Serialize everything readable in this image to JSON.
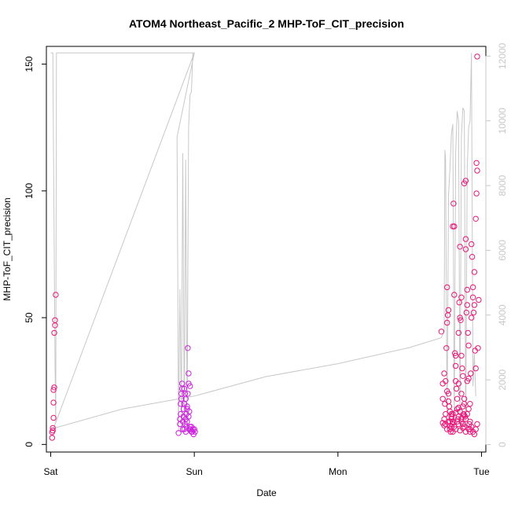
{
  "chart_data": {
    "type": "scatter",
    "title": "ATOM4 Northeast_Pacific_2 MHP-ToF_CIT_precision",
    "xlabel": "Date",
    "ylabel": "MHP-ToF_CIT_precision",
    "x_ticks": [
      {
        "label": "Sat",
        "day": 0
      },
      {
        "label": "Sun",
        "day": 1
      },
      {
        "label": "Mon",
        "day": 2
      },
      {
        "label": "Tue",
        "day": 3
      }
    ],
    "xlim": [
      -0.03,
      3.03
    ],
    "ylim": [
      -3,
      157
    ],
    "y_ticks": [
      0,
      50,
      100,
      150
    ],
    "y2_ticks": [
      0,
      2000,
      4000,
      6000,
      8000,
      10000,
      12000
    ],
    "y2lim": [
      -230,
      12300
    ],
    "grid": false,
    "legend": "none",
    "colors": {
      "points": "#e8177a",
      "points_alt": "#cc22dd",
      "line": "#c8c8c8",
      "right_axis": "#c8c8c8",
      "axis": "#000000"
    },
    "series": [
      {
        "type": "scatter",
        "axis": "left",
        "points": [
          [
            0.01,
            2.6
          ],
          [
            0.01,
            4.8
          ],
          [
            0.015,
            6.5
          ],
          [
            0.02,
            10.5
          ],
          [
            0.02,
            16.5
          ],
          [
            0.02,
            21.5
          ],
          [
            0.025,
            22.5
          ],
          [
            0.025,
            44
          ],
          [
            0.03,
            47
          ],
          [
            0.03,
            49
          ],
          [
            0.035,
            59
          ],
          [
            0.015,
            5.5
          ],
          [
            0.89,
            4.5
          ],
          [
            0.9,
            8
          ],
          [
            0.9,
            10
          ],
          [
            0.905,
            12
          ],
          [
            0.905,
            16
          ],
          [
            0.91,
            18
          ],
          [
            0.91,
            20
          ],
          [
            0.915,
            22
          ],
          [
            0.915,
            24
          ],
          [
            0.92,
            6
          ],
          [
            0.92,
            9
          ],
          [
            0.925,
            11
          ],
          [
            0.925,
            14
          ],
          [
            0.93,
            16
          ],
          [
            0.93,
            6
          ],
          [
            0.935,
            20
          ],
          [
            0.935,
            8
          ],
          [
            0.94,
            5
          ],
          [
            0.94,
            10
          ],
          [
            0.945,
            12
          ],
          [
            0.945,
            7
          ],
          [
            0.95,
            15
          ],
          [
            0.95,
            9
          ],
          [
            0.955,
            20
          ],
          [
            0.955,
            38
          ],
          [
            0.96,
            28
          ],
          [
            0.96,
            24
          ],
          [
            0.965,
            13
          ],
          [
            0.965,
            6
          ],
          [
            0.97,
            23
          ],
          [
            0.97,
            7
          ],
          [
            0.975,
            6
          ],
          [
            0.98,
            5
          ],
          [
            0.98,
            7
          ],
          [
            0.985,
            5
          ],
          [
            0.99,
            6
          ],
          [
            0.995,
            4
          ],
          [
            1.0,
            6
          ],
          [
            1.005,
            5
          ],
          [
            0.93,
            22
          ],
          [
            0.94,
            18
          ],
          [
            0.95,
            14
          ],
          [
            0.96,
            11
          ],
          [
            2.72,
            44.5
          ],
          [
            2.73,
            24
          ],
          [
            2.73,
            18
          ],
          [
            2.74,
            28
          ],
          [
            2.74,
            10
          ],
          [
            2.745,
            16
          ],
          [
            2.75,
            8
          ],
          [
            2.75,
            12
          ],
          [
            2.755,
            38
          ],
          [
            2.76,
            62
          ],
          [
            2.76,
            48
          ],
          [
            2.765,
            51
          ],
          [
            2.77,
            53
          ],
          [
            2.77,
            20
          ],
          [
            2.775,
            15
          ],
          [
            2.78,
            9
          ],
          [
            2.78,
            6
          ],
          [
            2.785,
            5
          ],
          [
            2.79,
            7
          ],
          [
            2.79,
            10
          ],
          [
            2.795,
            8
          ],
          [
            2.8,
            5
          ],
          [
            2.8,
            12
          ],
          [
            2.805,
            95
          ],
          [
            2.81,
            86
          ],
          [
            2.81,
            59
          ],
          [
            2.815,
            36
          ],
          [
            2.82,
            31
          ],
          [
            2.82,
            25
          ],
          [
            2.825,
            22
          ],
          [
            2.83,
            18
          ],
          [
            2.83,
            14
          ],
          [
            2.835,
            10
          ],
          [
            2.84,
            8
          ],
          [
            2.84,
            44
          ],
          [
            2.845,
            56
          ],
          [
            2.85,
            78
          ],
          [
            2.85,
            50
          ],
          [
            2.855,
            49
          ],
          [
            2.86,
            58
          ],
          [
            2.86,
            35
          ],
          [
            2.865,
            30
          ],
          [
            2.87,
            27
          ],
          [
            2.87,
            15
          ],
          [
            2.875,
            12
          ],
          [
            2.88,
            103
          ],
          [
            2.88,
            16
          ],
          [
            2.885,
            11
          ],
          [
            2.89,
            77
          ],
          [
            2.89,
            81
          ],
          [
            2.895,
            52
          ],
          [
            2.9,
            61
          ],
          [
            2.9,
            55
          ],
          [
            2.905,
            44
          ],
          [
            2.91,
            26
          ],
          [
            2.91,
            39
          ],
          [
            2.915,
            8
          ],
          [
            2.92,
            6
          ],
          [
            2.92,
            5
          ],
          [
            2.925,
            28
          ],
          [
            2.93,
            50
          ],
          [
            2.93,
            79
          ],
          [
            2.935,
            74
          ],
          [
            2.94,
            62
          ],
          [
            2.94,
            58
          ],
          [
            2.945,
            52
          ],
          [
            2.95,
            68
          ],
          [
            2.95,
            55
          ],
          [
            2.955,
            37
          ],
          [
            2.96,
            30
          ],
          [
            2.96,
            89
          ],
          [
            2.965,
            99
          ],
          [
            2.965,
            111
          ],
          [
            2.97,
            108
          ],
          [
            2.97,
            153
          ],
          [
            2.975,
            38
          ],
          [
            2.98,
            57
          ],
          [
            2.89,
            104
          ],
          [
            2.8,
            86
          ],
          [
            2.75,
            25
          ],
          [
            2.76,
            21
          ],
          [
            2.77,
            17
          ],
          [
            2.78,
            13
          ],
          [
            2.79,
            11
          ],
          [
            2.8,
            9
          ],
          [
            2.81,
            7
          ],
          [
            2.82,
            6
          ],
          [
            2.83,
            9
          ],
          [
            2.84,
            11
          ],
          [
            2.85,
            13
          ],
          [
            2.86,
            9
          ],
          [
            2.87,
            8
          ],
          [
            2.88,
            7
          ],
          [
            2.89,
            10
          ],
          [
            2.9,
            12
          ],
          [
            2.91,
            14
          ],
          [
            2.92,
            9
          ],
          [
            2.93,
            7
          ],
          [
            2.94,
            5
          ],
          [
            2.95,
            4
          ],
          [
            2.96,
            6
          ],
          [
            2.97,
            8
          ],
          [
            2.84,
            24
          ],
          [
            2.86,
            20
          ],
          [
            2.88,
            18
          ],
          [
            2.9,
            25
          ],
          [
            2.92,
            16
          ],
          [
            2.82,
            35
          ],
          [
            2.79,
            12
          ],
          [
            2.77,
            9
          ],
          [
            2.85,
            5.5
          ],
          [
            2.87,
            6.5
          ],
          [
            2.89,
            5
          ],
          [
            2.91,
            6
          ],
          [
            2.73,
            8.5
          ],
          [
            2.74,
            7.5
          ],
          [
            2.76,
            6
          ],
          [
            2.78,
            7.2
          ],
          [
            2.8,
            8.8
          ],
          [
            2.82,
            12.5
          ],
          [
            2.84,
            14.5
          ],
          [
            2.86,
            10.2
          ],
          [
            2.88,
            11.5
          ]
        ]
      },
      {
        "type": "line",
        "axis": "right",
        "points": [
          [
            0.0,
            12100
          ],
          [
            0.015,
            12100
          ],
          [
            0.03,
            2500
          ],
          [
            0.035,
            700
          ],
          [
            0.04,
            12100
          ],
          [
            0.3,
            12100
          ],
          [
            0.6,
            12100
          ],
          [
            0.88,
            12100
          ],
          [
            0.9,
            12100
          ],
          [
            0.95,
            12100
          ],
          [
            1.0,
            12100
          ],
          [
            0.88,
            9500
          ],
          [
            0.89,
            400
          ],
          [
            0.9,
            4800
          ],
          [
            0.91,
            800
          ],
          [
            0.92,
            9000
          ],
          [
            0.93,
            500
          ],
          [
            0.94,
            8800
          ],
          [
            0.95,
            600
          ],
          [
            0.96,
            9800
          ],
          [
            0.97,
            10800
          ],
          [
            0.98,
            10900
          ],
          [
            0.99,
            12100
          ],
          [
            1.0,
            12100
          ],
          [
            0.02,
            500
          ],
          [
            0.5,
            1100
          ],
          [
            1.0,
            1500
          ],
          [
            1.5,
            2100
          ],
          [
            2.0,
            2500
          ],
          [
            2.5,
            3000
          ],
          [
            2.72,
            3300
          ],
          [
            2.74,
            3500
          ],
          [
            2.745,
            9100
          ],
          [
            2.75,
            8800
          ],
          [
            2.76,
            500
          ],
          [
            2.77,
            7700
          ],
          [
            2.78,
            8500
          ],
          [
            2.79,
            9600
          ],
          [
            2.8,
            9900
          ],
          [
            2.81,
            700
          ],
          [
            2.82,
            9000
          ],
          [
            2.83,
            10300
          ],
          [
            2.84,
            10000
          ],
          [
            2.85,
            600
          ],
          [
            2.86,
            9500
          ],
          [
            2.87,
            10400
          ],
          [
            2.88,
            10300
          ],
          [
            2.89,
            500
          ],
          [
            2.9,
            8500
          ],
          [
            2.91,
            9800
          ],
          [
            2.92,
            10000
          ],
          [
            2.93,
            12100
          ],
          [
            2.94,
            1800
          ],
          [
            2.95,
            2800
          ],
          [
            2.96,
            1500
          ]
        ]
      }
    ]
  }
}
